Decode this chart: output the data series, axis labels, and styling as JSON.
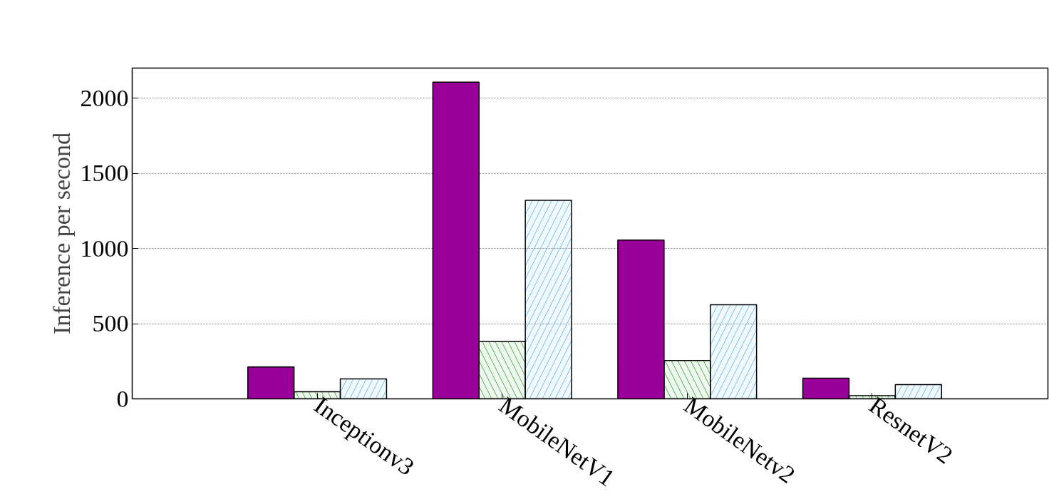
{
  "chart_data": {
    "type": "bar",
    "ylabel": "Inference per second",
    "categories": [
      "Inceptionv3",
      "MobileNetV1",
      "MobileNetv2",
      "ResnetV2"
    ],
    "series": [
      {
        "color": "#990099",
        "values": [
          212,
          2106,
          1056,
          138
        ]
      },
      {
        "color": "#2ca02c",
        "values": [
          48,
          382,
          255,
          21
        ]
      },
      {
        "color": "#56b4e9",
        "values": [
          133,
          1321,
          626,
          95
        ]
      }
    ],
    "ylim": [
      0,
      2200
    ],
    "yticks": [
      0,
      500,
      1000,
      1500,
      2000
    ],
    "grid": "y"
  }
}
